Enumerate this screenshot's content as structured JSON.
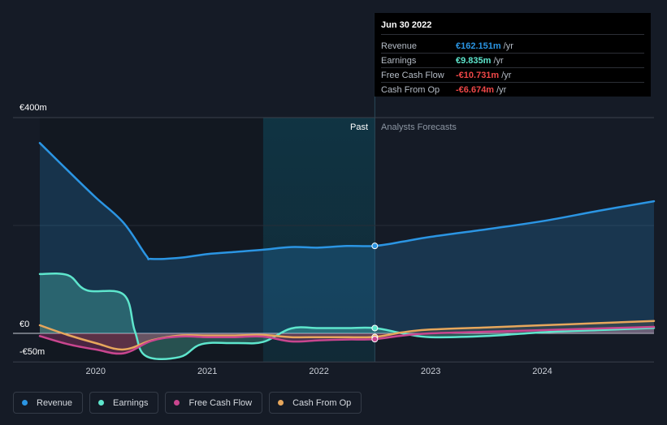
{
  "chart_data": {
    "type": "line",
    "y_axis": {
      "top_label": "€400m",
      "zero_label": "€0",
      "bottom_label": "-€50m",
      "ylim": [
        -50,
        400
      ]
    },
    "x_axis": {
      "tick_labels": [
        "2020",
        "2021",
        "2022",
        "2023",
        "2024"
      ],
      "range": [
        2019.5,
        2025.0
      ]
    },
    "divider": {
      "past_label": "Past",
      "forecast_label": "Analysts Forecasts",
      "date": 2022.5
    },
    "series": [
      {
        "name": "Revenue",
        "color": "#2b95e3",
        "points": [
          [
            2019.5,
            353
          ],
          [
            2019.75,
            302
          ],
          [
            2020.0,
            252
          ],
          [
            2020.25,
            205
          ],
          [
            2020.45,
            145
          ],
          [
            2020.5,
            138
          ],
          [
            2020.75,
            140
          ],
          [
            2021.0,
            147
          ],
          [
            2021.25,
            151
          ],
          [
            2021.5,
            155
          ],
          [
            2021.75,
            160
          ],
          [
            2022.0,
            159
          ],
          [
            2022.25,
            162
          ],
          [
            2022.5,
            162.151
          ],
          [
            2022.75,
            170
          ],
          [
            2023.0,
            179
          ],
          [
            2023.5,
            193
          ],
          [
            2024.0,
            208
          ],
          [
            2024.5,
            227
          ],
          [
            2025.0,
            245
          ]
        ]
      },
      {
        "name": "Earnings",
        "color": "#5ee6cd",
        "points": [
          [
            2019.5,
            110
          ],
          [
            2019.75,
            108
          ],
          [
            2019.92,
            80
          ],
          [
            2020.25,
            72
          ],
          [
            2020.35,
            5
          ],
          [
            2020.45,
            -42
          ],
          [
            2020.75,
            -44
          ],
          [
            2020.95,
            -20
          ],
          [
            2021.25,
            -18
          ],
          [
            2021.5,
            -16
          ],
          [
            2021.75,
            9
          ],
          [
            2022.0,
            9.8
          ],
          [
            2022.25,
            9.8
          ],
          [
            2022.5,
            9.835
          ],
          [
            2022.75,
            0
          ],
          [
            2023.0,
            -7
          ],
          [
            2023.5,
            -5
          ],
          [
            2024.0,
            2
          ],
          [
            2024.5,
            6
          ],
          [
            2025.0,
            10
          ]
        ]
      },
      {
        "name": "Free Cash Flow",
        "color": "#c9468f",
        "points": [
          [
            2019.5,
            -5
          ],
          [
            2019.75,
            -20
          ],
          [
            2020.0,
            -30
          ],
          [
            2020.25,
            -37
          ],
          [
            2020.5,
            -14
          ],
          [
            2020.75,
            -6
          ],
          [
            2021.0,
            -7
          ],
          [
            2021.25,
            -7
          ],
          [
            2021.5,
            -6
          ],
          [
            2021.75,
            -15
          ],
          [
            2022.0,
            -13
          ],
          [
            2022.25,
            -11.5
          ],
          [
            2022.5,
            -10.731
          ],
          [
            2022.75,
            -4
          ],
          [
            2023.0,
            0
          ],
          [
            2023.5,
            3
          ],
          [
            2024.0,
            6
          ],
          [
            2024.5,
            9
          ],
          [
            2025.0,
            12
          ]
        ]
      },
      {
        "name": "Cash From Op",
        "color": "#e7a75c",
        "points": [
          [
            2019.5,
            15
          ],
          [
            2019.75,
            -3
          ],
          [
            2020.0,
            -18
          ],
          [
            2020.25,
            -30
          ],
          [
            2020.5,
            -13
          ],
          [
            2020.75,
            -4
          ],
          [
            2021.0,
            -4
          ],
          [
            2021.25,
            -4
          ],
          [
            2021.5,
            -3
          ],
          [
            2021.75,
            -7
          ],
          [
            2022.0,
            -7
          ],
          [
            2022.25,
            -7
          ],
          [
            2022.5,
            -6.674
          ],
          [
            2022.75,
            2
          ],
          [
            2023.0,
            7
          ],
          [
            2023.5,
            11
          ],
          [
            2024.0,
            15
          ],
          [
            2024.5,
            19
          ],
          [
            2025.0,
            23
          ]
        ]
      }
    ],
    "grid": true,
    "legend_position": "bottom-left"
  },
  "tooltip": {
    "date": "Jun 30 2022",
    "rows": [
      {
        "name": "Revenue",
        "value": "€162.151m",
        "unit": "/yr",
        "color": "#2b95e3"
      },
      {
        "name": "Earnings",
        "value": "€9.835m",
        "unit": "/yr",
        "color": "#5ee6cd"
      },
      {
        "name": "Free Cash Flow",
        "value": "-€10.731m",
        "unit": "/yr",
        "color": "#ef4747"
      },
      {
        "name": "Cash From Op",
        "value": "-€6.674m",
        "unit": "/yr",
        "color": "#ef4747"
      }
    ]
  },
  "legend": [
    {
      "label": "Revenue",
      "color": "#2b95e3"
    },
    {
      "label": "Earnings",
      "color": "#5ee6cd"
    },
    {
      "label": "Free Cash Flow",
      "color": "#c9468f"
    },
    {
      "label": "Cash From Op",
      "color": "#e7a75c"
    }
  ]
}
